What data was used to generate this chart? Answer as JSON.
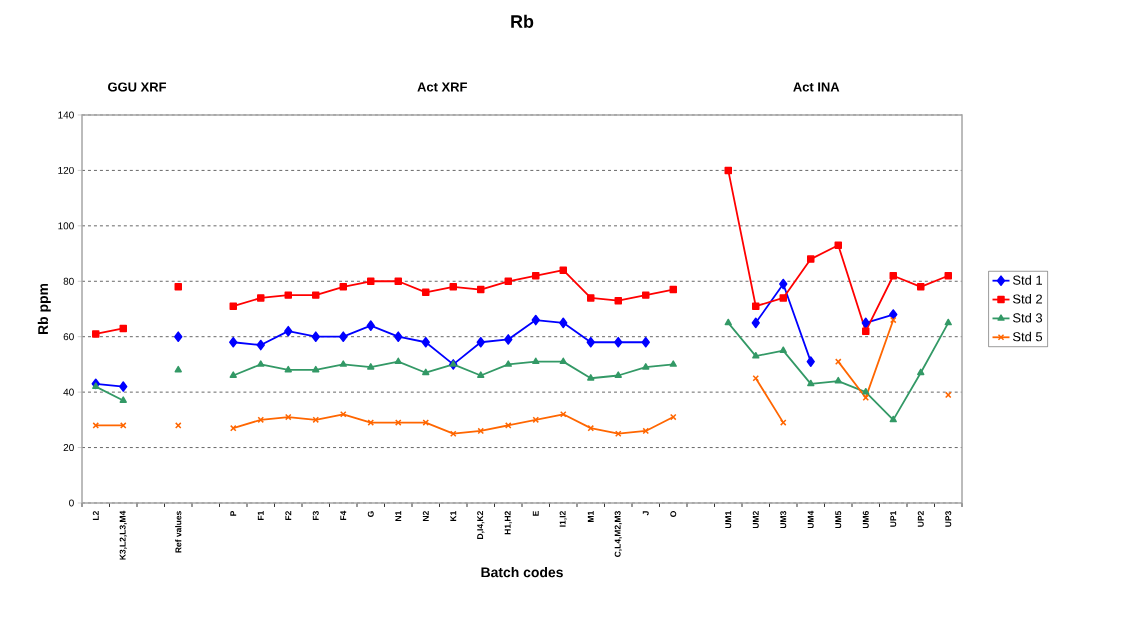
{
  "chart_data": {
    "type": "line",
    "title": "Rb",
    "xlabel": "Batch codes",
    "ylabel": "Rb ppm",
    "annotations": [
      "GGU XRF",
      "Act XRF",
      "Act INA"
    ],
    "categories": [
      "L2",
      "K3,L2,L3,M4",
      null,
      "Ref values",
      null,
      "P",
      "F1",
      "F2",
      "F3",
      "F4",
      "G",
      "N1",
      "N2",
      "K1",
      "D,I4,K2",
      "H1,H2",
      "E",
      "I1,I2",
      "M1",
      "C,L4,M2,M3",
      "J",
      "O",
      null,
      "UM1",
      "UM2",
      "UM3",
      "UM4",
      "UM5",
      "UM6",
      "UP1",
      "UP2",
      "UP3"
    ],
    "series": [
      {
        "name": "Std 1",
        "color": "#0000ff",
        "marker": "diamond",
        "values": [
          43,
          42,
          null,
          60,
          null,
          58,
          57,
          62,
          60,
          60,
          64,
          60,
          58,
          50,
          58,
          59,
          66,
          65,
          58,
          58,
          58,
          null,
          null,
          null,
          65,
          79,
          51,
          null,
          65,
          68,
          null,
          null
        ]
      },
      {
        "name": "Std 2",
        "color": "#ff0000",
        "marker": "square",
        "values": [
          61,
          63,
          null,
          78,
          null,
          71,
          74,
          75,
          75,
          78,
          80,
          80,
          76,
          78,
          77,
          80,
          82,
          84,
          74,
          73,
          75,
          77,
          null,
          120,
          71,
          74,
          88,
          93,
          62,
          82,
          78,
          82
        ]
      },
      {
        "name": "Std 3",
        "color": "#339966",
        "marker": "triangle",
        "values": [
          42,
          37,
          null,
          48,
          null,
          46,
          50,
          48,
          48,
          50,
          49,
          51,
          47,
          50,
          46,
          50,
          51,
          51,
          45,
          46,
          49,
          50,
          null,
          65,
          53,
          55,
          43,
          44,
          40,
          30,
          47,
          65
        ]
      },
      {
        "name": "Std 5",
        "color": "#ff6600",
        "marker": "cross",
        "values": [
          28,
          28,
          null,
          28,
          null,
          27,
          30,
          31,
          30,
          32,
          29,
          29,
          29,
          25,
          26,
          28,
          30,
          32,
          27,
          25,
          26,
          31,
          null,
          null,
          45,
          29,
          null,
          51,
          38,
          66,
          null,
          39
        ]
      }
    ],
    "ylim": [
      0,
      140
    ],
    "yticks": [
      0,
      20,
      40,
      60,
      80,
      100,
      120,
      140
    ],
    "grid": "y",
    "legend": "right"
  }
}
